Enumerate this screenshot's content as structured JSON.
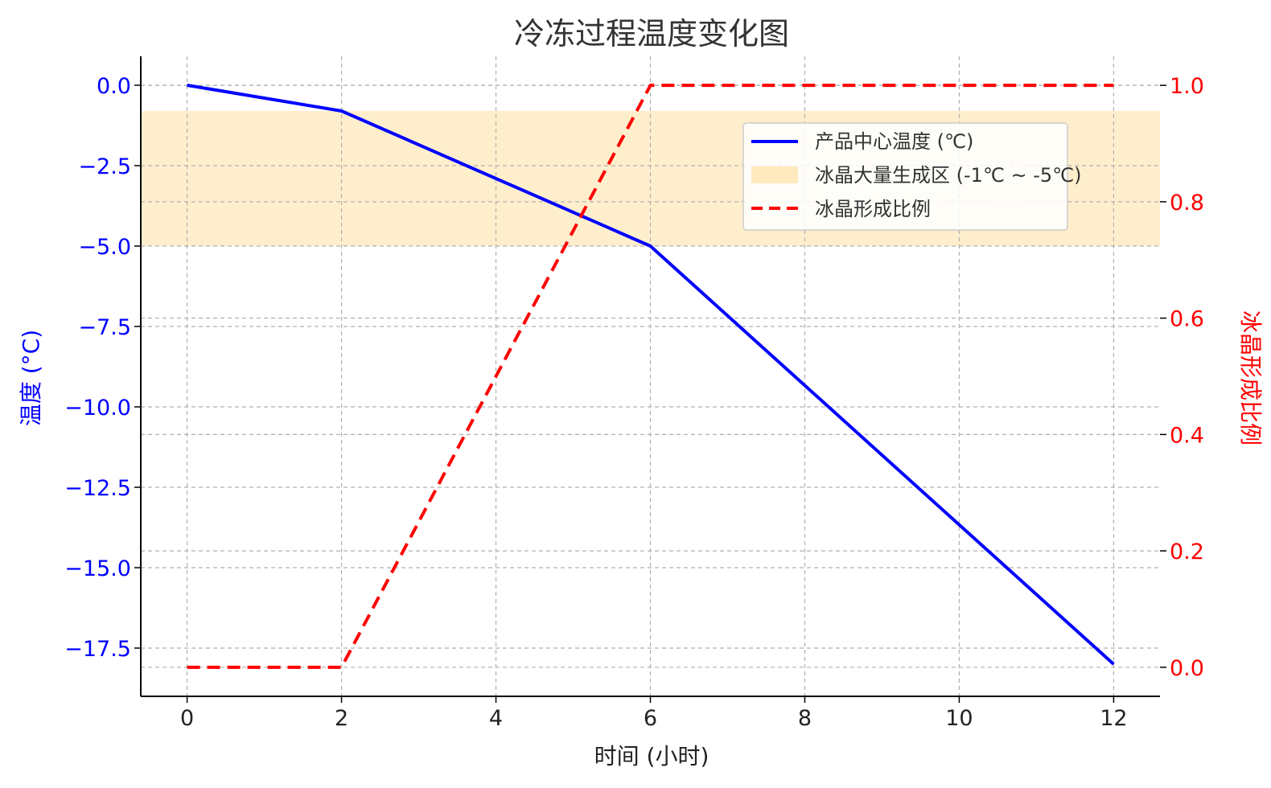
{
  "chart_data": {
    "type": "line",
    "title": "冷冻过程温度变化图",
    "xlabel": "时间 (小时)",
    "ylabel_left": "温度 (°C)",
    "ylabel_right": "冰晶形成比例",
    "x_ticks": [
      "0",
      "2",
      "4",
      "6",
      "8",
      "10",
      "12"
    ],
    "xlim": [
      -0.6,
      12.6
    ],
    "y_left_ticks": [
      "0.0",
      "−2.5",
      "−5.0",
      "−7.5",
      "−10.0",
      "−12.5",
      "−15.0",
      "−17.5"
    ],
    "y_left_tick_values": [
      0,
      -2.5,
      -5,
      -7.5,
      -10,
      -12.5,
      -15,
      -17.5
    ],
    "ylim_left": [
      -19,
      0.9
    ],
    "y_right_ticks": [
      "0.0",
      "0.2",
      "0.4",
      "0.6",
      "0.8",
      "1.0"
    ],
    "y_right_tick_values": [
      0,
      0.2,
      0.4,
      0.6,
      0.8,
      1.0
    ],
    "ylim_right": [
      -0.05,
      1.05
    ],
    "series": [
      {
        "name": "产品中心温度 (℃)",
        "axis": "left",
        "color": "#0000ff",
        "style": "solid",
        "x": [
          0,
          2,
          6,
          12
        ],
        "y": [
          0,
          -0.8,
          -5,
          -18
        ]
      },
      {
        "name": "冰晶形成比例",
        "axis": "right",
        "color": "#ff0000",
        "style": "dashed",
        "x": [
          0,
          2,
          6,
          12
        ],
        "y": [
          0,
          0,
          1,
          1
        ]
      }
    ],
    "band": {
      "name": "冰晶大量生成区 (-1℃ ~ -5℃)",
      "axis": "left",
      "from": -0.8,
      "to": -5,
      "color": "#ffdd99"
    },
    "grid": true,
    "legend_position": "top-right",
    "colors": {
      "left_axis": "#0000ff",
      "right_axis": "#ff0000",
      "text": "#222222"
    }
  }
}
